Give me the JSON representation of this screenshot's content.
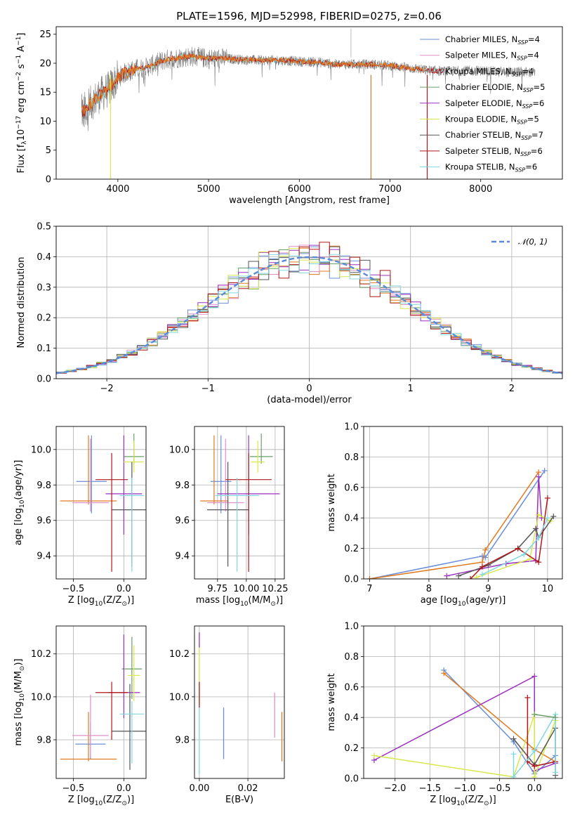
{
  "figure": {
    "title": "PLATE=1596, MJD=52998, FIBERID=0275, z=0.06"
  },
  "colors": {
    "Chabrier MILES": "#6a8fd8",
    "Salpeter MILES": "#e07a20",
    "Kroupa MILES": "#9a9a9a",
    "Chabrier ELODIE": "#6aa06a",
    "Salpeter ELODIE": "#9b30c0",
    "Kroupa ELODIE": "#d8e84a",
    "Chabrier STELIB": "#555555",
    "Salpeter STELIB": "#b01818",
    "Kroupa STELIB": "#80d8e0",
    "Salpeter MILES (hist)": "#e090c8",
    "normal": "#5a8ad8"
  },
  "chart_data": [
    {
      "id": "spectrum",
      "type": "line",
      "title": "PLATE=1596, MJD=52998, FIBERID=0275, z=0.06",
      "xlabel": "wavelength [Angstrom, rest frame]",
      "ylabel_parts": [
        "Flux [f",
        "λ",
        "10",
        "−17",
        " erg cm",
        "−2",
        " s",
        "−1",
        " A",
        "−1",
        "]"
      ],
      "xlim": [
        3320,
        8900
      ],
      "ylim": [
        0,
        26.3
      ],
      "xticks": [
        "4000",
        "5000",
        "6000",
        "7000",
        "8000"
      ],
      "xtick_values": [
        4000,
        5000,
        6000,
        7000,
        8000
      ],
      "yticks": [
        "0",
        "5",
        "10",
        "15",
        "20",
        "25"
      ],
      "ytick_values": [
        0,
        5,
        10,
        15,
        20,
        25
      ],
      "grid": false,
      "legend_position": "right",
      "legend": [
        {
          "name": "Chabrier MILES",
          "nssp": "4",
          "color": "#6a8fd8"
        },
        {
          "name": "Salpeter MILES",
          "nssp": "4",
          "color": "#e090c8"
        },
        {
          "name": "Kroupa MILES",
          "nssp": "4",
          "color": "#9a9a9a"
        },
        {
          "name": "Chabrier ELODIE",
          "nssp": "5",
          "color": "#6aa06a"
        },
        {
          "name": "Salpeter ELODIE",
          "nssp": "6",
          "color": "#9b30c0"
        },
        {
          "name": "Kroupa ELODIE",
          "nssp": "5",
          "color": "#d8e84a"
        },
        {
          "name": "Chabrier STELIB",
          "nssp": "7",
          "color": "#555555"
        },
        {
          "name": "Salpeter STELIB",
          "nssp": "6",
          "color": "#b01818"
        },
        {
          "name": "Kroupa STELIB",
          "nssp": "6",
          "color": "#80d8e0"
        }
      ],
      "continuum": {
        "x": [
          3600,
          3700,
          3800,
          3900,
          4000,
          4100,
          4200,
          4300,
          4400,
          4500,
          4600,
          4700,
          4800,
          4900,
          5000,
          5200,
          5400,
          5600,
          5800,
          6000,
          6200,
          6400,
          6600,
          6800,
          7000,
          7200,
          7400,
          7600,
          7800,
          8000,
          8200,
          8400,
          8600
        ],
        "y": [
          11.5,
          13.0,
          14.5,
          15.5,
          17.5,
          18.5,
          19.0,
          19.2,
          19.8,
          20.5,
          20.8,
          21.0,
          21.2,
          21.0,
          20.8,
          20.8,
          20.6,
          20.5,
          20.5,
          20.3,
          20.2,
          19.8,
          19.8,
          19.8,
          19.6,
          19.2,
          18.8,
          18.6,
          18.7,
          18.7,
          18.5,
          18.5,
          18.4
        ]
      },
      "series_models": [
        {
          "name": "Kroupa STELIB",
          "color": "#80d8e0",
          "x_end": 7600
        },
        {
          "name": "Salpeter STELIB",
          "color": "#b01818",
          "x_end": 7600
        },
        {
          "name": "Salpeter MILES",
          "color": "#e07a20",
          "x_end": 7400
        }
      ],
      "dropouts": [
        {
          "x": 3920,
          "color": "#d8e84a"
        },
        {
          "x": 6790,
          "color": "#e07a20"
        },
        {
          "x": 7410,
          "color": "#b01818"
        }
      ]
    },
    {
      "id": "residuals",
      "type": "line",
      "xlabel": "(data-model)/error",
      "ylabel": "Normed distribution",
      "xlim": [
        -2.5,
        2.5
      ],
      "ylim": [
        0,
        0.5
      ],
      "xticks": [
        "−2",
        "−1",
        "0",
        "1",
        "2"
      ],
      "xtick_values": [
        -2,
        -1,
        0,
        1,
        2
      ],
      "yticks": [
        "0.0",
        "0.1",
        "0.2",
        "0.3",
        "0.4",
        "0.5"
      ],
      "ytick_values": [
        0,
        0.1,
        0.2,
        0.3,
        0.4,
        0.5
      ],
      "grid": true,
      "legend_position": "top-right",
      "legend_label": "𝒩(0, 1)",
      "bin_width": 0.1,
      "hist_colors": [
        "#6a8fd8",
        "#e07a20",
        "#e090c8",
        "#6aa06a",
        "#9b30c0",
        "#d8e84a",
        "#555555",
        "#b01818",
        "#80d8e0"
      ]
    },
    {
      "id": "age-vs-Z",
      "type": "scatter",
      "xlabel_parts": [
        "Z [log",
        "10",
        "(Z/Z",
        "⊙",
        ")]"
      ],
      "ylabel_parts": [
        "age  [log",
        "10",
        "(age/yr)]"
      ],
      "xlim": [
        -0.67,
        0.22
      ],
      "ylim": [
        9.27,
        10.13
      ],
      "xticks": [
        "−0.5",
        "0.0"
      ],
      "xtick_values": [
        -0.5,
        0.0
      ],
      "yticks": [
        "9.4",
        "9.6",
        "9.8",
        "10.0"
      ],
      "ytick_values": [
        9.4,
        9.6,
        9.8,
        10.0
      ],
      "grid": true,
      "points": [
        {
          "x": -0.32,
          "y": 9.82,
          "xerr": 0.15,
          "yerr_lo": 0.18,
          "yerr_hi": 0.26,
          "color": "#6a8fd8"
        },
        {
          "x": -0.35,
          "y": 9.71,
          "xerr": 0.28,
          "yerr_lo": 0.02,
          "yerr_hi": 0.37,
          "color": "#e07a20"
        },
        {
          "x": -0.33,
          "y": 9.7,
          "xerr": 0.18,
          "yerr_lo": 0.05,
          "yerr_hi": 0.36,
          "color": "#e090c8"
        },
        {
          "x": 0.1,
          "y": 9.96,
          "xerr": 0.1,
          "yerr_lo": 0.04,
          "yerr_hi": 0.13,
          "color": "#6aa06a"
        },
        {
          "x": 0.0,
          "y": 9.75,
          "xerr": 0.18,
          "yerr_lo": 0.23,
          "yerr_hi": 0.33,
          "color": "#9b30c0"
        },
        {
          "x": 0.1,
          "y": 9.93,
          "xerr": 0.1,
          "yerr_lo": 0.06,
          "yerr_hi": 0.12,
          "color": "#d8e84a"
        },
        {
          "x": 0.08,
          "y": 9.66,
          "xerr": 0.2,
          "yerr_lo": 0.32,
          "yerr_hi": 0.27,
          "color": "#555555"
        },
        {
          "x": -0.12,
          "y": 9.83,
          "xerr": 0.16,
          "yerr_lo": 0.52,
          "yerr_hi": 0.15,
          "color": "#b01818"
        },
        {
          "x": 0.08,
          "y": 9.74,
          "xerr": 0.12,
          "yerr_lo": 0.43,
          "yerr_hi": 0.1,
          "color": "#80d8e0"
        }
      ]
    },
    {
      "id": "age-vs-mass",
      "type": "scatter",
      "xlabel_parts": [
        "mass [log",
        "10",
        "(M/M",
        "⊙",
        ")]"
      ],
      "ylabel_parts": [],
      "xlim": [
        9.55,
        10.33
      ],
      "ylim": [
        9.27,
        10.13
      ],
      "xticks": [
        "9.75",
        "10.00",
        "10.25"
      ],
      "xtick_values": [
        9.75,
        10.0,
        10.25
      ],
      "yticks": [
        "9.4",
        "9.6",
        "9.8",
        "10.0"
      ],
      "ytick_values": [
        9.4,
        9.6,
        9.8,
        10.0
      ],
      "grid": true,
      "points": [
        {
          "x": 9.78,
          "y": 9.82,
          "xerr": 0.09,
          "yerr_lo": 0.18,
          "yerr_hi": 0.26,
          "color": "#6a8fd8"
        },
        {
          "x": 9.72,
          "y": 9.71,
          "xerr": 0.12,
          "yerr_lo": 0.02,
          "yerr_hi": 0.37,
          "color": "#e07a20"
        },
        {
          "x": 9.82,
          "y": 9.7,
          "xerr": 0.16,
          "yerr_lo": 0.05,
          "yerr_hi": 0.36,
          "color": "#e090c8"
        },
        {
          "x": 10.13,
          "y": 9.96,
          "xerr": 0.1,
          "yerr_lo": 0.04,
          "yerr_hi": 0.13,
          "color": "#6aa06a"
        },
        {
          "x": 10.02,
          "y": 9.75,
          "xerr": 0.27,
          "yerr_lo": 0.23,
          "yerr_hi": 0.33,
          "color": "#9b30c0"
        },
        {
          "x": 10.1,
          "y": 9.93,
          "xerr": 0.06,
          "yerr_lo": 0.06,
          "yerr_hi": 0.12,
          "color": "#d8e84a"
        },
        {
          "x": 9.84,
          "y": 9.66,
          "xerr": 0.18,
          "yerr_lo": 0.32,
          "yerr_hi": 0.27,
          "color": "#555555"
        },
        {
          "x": 10.02,
          "y": 9.83,
          "xerr": 0.2,
          "yerr_lo": 0.52,
          "yerr_hi": 0.15,
          "color": "#b01818"
        },
        {
          "x": 9.92,
          "y": 9.74,
          "xerr": 0.19,
          "yerr_lo": 0.43,
          "yerr_hi": 0.1,
          "color": "#80d8e0"
        }
      ]
    },
    {
      "id": "weight-vs-age",
      "type": "line",
      "xlabel_parts": [
        "age  [log",
        "10",
        "(age/yr)]"
      ],
      "ylabel": "mass weight",
      "xlim": [
        6.9,
        10.25
      ],
      "ylim": [
        0,
        1.0
      ],
      "xticks": [
        "7",
        "8",
        "9",
        "10"
      ],
      "xtick_values": [
        7,
        8,
        9,
        10
      ],
      "yticks": [
        "0.0",
        "0.2",
        "0.4",
        "0.6",
        "0.8",
        "1.0"
      ],
      "ytick_values": [
        0,
        0.2,
        0.4,
        0.6,
        0.8,
        1.0
      ],
      "grid": true,
      "series": [
        {
          "name": "Chabrier MILES",
          "color": "#6a8fd8",
          "x": [
            7.0,
            8.9,
            8.95,
            9.95
          ],
          "y": [
            0.0,
            0.15,
            0.14,
            0.71
          ]
        },
        {
          "name": "Salpeter MILES",
          "color": "#e07a20",
          "x": [
            7.0,
            8.9,
            8.95,
            9.85
          ],
          "y": [
            0.0,
            0.11,
            0.19,
            0.7
          ]
        },
        {
          "name": "Salpeter ELODIE",
          "color": "#9b30c0",
          "x": [
            8.3,
            9.3,
            9.8,
            9.85,
            9.9
          ],
          "y": [
            0.02,
            0.1,
            0.12,
            0.67,
            0.4
          ]
        },
        {
          "name": "Kroupa ELODIE",
          "color": "#d8e84a",
          "x": [
            8.8,
            9.7,
            9.85,
            10.05
          ],
          "y": [
            0.01,
            0.13,
            0.42,
            0.38
          ]
        },
        {
          "name": "Chabrier STELIB",
          "color": "#555555",
          "x": [
            8.5,
            9.0,
            9.5,
            9.8,
            9.85,
            10.1
          ],
          "y": [
            0.02,
            0.09,
            0.2,
            0.33,
            0.27,
            0.41
          ]
        },
        {
          "name": "Salpeter STELIB",
          "color": "#b01818",
          "x": [
            8.7,
            8.9,
            9.5,
            9.85,
            10.0
          ],
          "y": [
            0.0,
            0.08,
            0.2,
            0.11,
            0.53
          ]
        },
        {
          "name": "Kroupa STELIB",
          "color": "#80d8e0",
          "x": [
            8.9,
            9.6,
            9.85,
            10.0
          ],
          "y": [
            0.03,
            0.16,
            0.27,
            0.4
          ]
        }
      ]
    },
    {
      "id": "mass-vs-Z",
      "type": "scatter",
      "xlabel_parts": [
        "Z [log",
        "10",
        "(Z/Z",
        "⊙",
        ")]"
      ],
      "ylabel_parts": [
        "mass [log",
        "10",
        "(M/M",
        "⊙",
        ")]"
      ],
      "xlim": [
        -0.67,
        0.22
      ],
      "ylim": [
        9.62,
        10.33
      ],
      "xticks": [
        "−0.5",
        "0.0"
      ],
      "xtick_values": [
        -0.5,
        0.0
      ],
      "yticks": [
        "9.8",
        "10.0",
        "10.2"
      ],
      "ytick_values": [
        9.8,
        10.0,
        10.2
      ],
      "grid": true,
      "points": [
        {
          "x": -0.33,
          "y": 9.78,
          "xerr": 0.15,
          "yerr_lo": 0.07,
          "yerr_hi": 0.1,
          "color": "#6a8fd8"
        },
        {
          "x": -0.35,
          "y": 9.71,
          "xerr": 0.28,
          "yerr_lo": 0.01,
          "yerr_hi": 0.22,
          "color": "#e07a20"
        },
        {
          "x": -0.33,
          "y": 9.82,
          "xerr": 0.18,
          "yerr_lo": 0.1,
          "yerr_hi": 0.19,
          "color": "#e090c8"
        },
        {
          "x": 0.08,
          "y": 10.13,
          "xerr": 0.1,
          "yerr_lo": 0.14,
          "yerr_hi": 0.15,
          "color": "#6aa06a"
        },
        {
          "x": 0.0,
          "y": 10.02,
          "xerr": 0.16,
          "yerr_lo": 0.12,
          "yerr_hi": 0.27,
          "color": "#9b30c0"
        },
        {
          "x": 0.1,
          "y": 10.1,
          "xerr": 0.06,
          "yerr_lo": 0.12,
          "yerr_hi": 0.14,
          "color": "#d8e84a"
        },
        {
          "x": 0.06,
          "y": 9.84,
          "xerr": 0.18,
          "yerr_lo": 0.18,
          "yerr_hi": 0.22,
          "color": "#555555"
        },
        {
          "x": -0.12,
          "y": 10.02,
          "xerr": 0.16,
          "yerr_lo": 0.22,
          "yerr_hi": 0.05,
          "color": "#b01818"
        },
        {
          "x": 0.08,
          "y": 9.92,
          "xerr": 0.12,
          "yerr_lo": 0.23,
          "yerr_hi": 0.06,
          "color": "#80d8e0"
        }
      ]
    },
    {
      "id": "mass-vs-ebv",
      "type": "scatter",
      "xlabel": "E(B-V)",
      "ylabel_parts": [],
      "xlim": [
        -0.002,
        0.035
      ],
      "ylim": [
        9.62,
        10.33
      ],
      "xticks": [
        "0.00",
        "0.02"
      ],
      "xtick_values": [
        0.0,
        0.02
      ],
      "yticks": [
        "9.8",
        "10.0",
        "10.2"
      ],
      "ytick_values": [
        9.8,
        10.0,
        10.2
      ],
      "grid": true,
      "segments": [
        {
          "x": 0.0,
          "y0": 9.64,
          "y1": 9.95,
          "color": "#80d8e0"
        },
        {
          "x": 0.0,
          "y0": 9.98,
          "y1": 10.24,
          "color": "#d8e84a"
        },
        {
          "x": 0.0,
          "y0": 9.95,
          "y1": 10.07,
          "color": "#b01818"
        },
        {
          "x": 0.0,
          "y0": 10.23,
          "y1": 10.3,
          "color": "#9b30c0"
        },
        {
          "x": 0.01,
          "y0": 9.71,
          "y1": 9.95,
          "color": "#6a8fd8"
        },
        {
          "x": 0.031,
          "y0": 9.81,
          "y1": 10.02,
          "color": "#e090c8"
        },
        {
          "x": 0.034,
          "y0": 9.7,
          "y1": 9.93,
          "color": "#e07a20"
        }
      ]
    },
    {
      "id": "weight-vs-Z",
      "type": "line",
      "xlabel_parts": [
        "Z [log",
        "10",
        "(Z/Z",
        "⊙",
        ")]"
      ],
      "ylabel": "mass weight",
      "xlim": [
        -2.45,
        0.4
      ],
      "ylim": [
        0,
        1.0
      ],
      "xticks": [
        "−2.0",
        "−1.5",
        "−1.0",
        "−0.5",
        "0.0"
      ],
      "xtick_values": [
        -2.0,
        -1.5,
        -1.0,
        -0.5,
        0.0
      ],
      "yticks": [
        "0.0",
        "0.2",
        "0.4",
        "0.6",
        "0.8",
        "1.0"
      ],
      "ytick_values": [
        0,
        0.2,
        0.4,
        0.6,
        0.8,
        1.0
      ],
      "grid": true,
      "series": [
        {
          "name": "Chabrier MILES",
          "color": "#6a8fd8",
          "x": [
            -1.3,
            -0.3,
            0.0,
            0.3
          ],
          "y": [
            0.71,
            0.24,
            0.03,
            0.15
          ]
        },
        {
          "name": "Salpeter MILES",
          "color": "#e07a20",
          "x": [
            -1.3,
            0.0,
            0.3
          ],
          "y": [
            0.69,
            0.19,
            0.11
          ]
        },
        {
          "name": "Salpeter ELODIE",
          "color": "#9b30c0",
          "x": [
            -2.3,
            0.0,
            0.0,
            0.3
          ],
          "y": [
            0.12,
            0.67,
            0.05,
            0.1
          ]
        },
        {
          "name": "Kroupa ELODIE",
          "color": "#d8e84a",
          "x": [
            -2.3,
            -0.3,
            0.0,
            0.0,
            0.3
          ],
          "y": [
            0.15,
            0.01,
            0.42,
            0.01,
            0.38
          ]
        },
        {
          "name": "Chabrier STELIB",
          "color": "#555555",
          "x": [
            -0.3,
            0.0,
            0.3,
            0.3
          ],
          "y": [
            0.26,
            0.09,
            0.33,
            0.02
          ]
        },
        {
          "name": "Salpeter STELIB",
          "color": "#b01818",
          "x": [
            -0.1,
            -0.1,
            0.0,
            0.3
          ],
          "y": [
            0.53,
            0.11,
            0.08,
            0.11
          ]
        },
        {
          "name": "Kroupa STELIB",
          "color": "#80d8e0",
          "x": [
            -0.3,
            -0.3,
            0.0,
            0.3,
            0.3
          ],
          "y": [
            0.16,
            0.01,
            0.18,
            0.42,
            0.04
          ]
        },
        {
          "name": "Chabrier ELODIE",
          "color": "#6aa06a",
          "x": [
            0.0,
            0.3
          ],
          "y": [
            0.42,
            0.4
          ]
        }
      ]
    }
  ]
}
